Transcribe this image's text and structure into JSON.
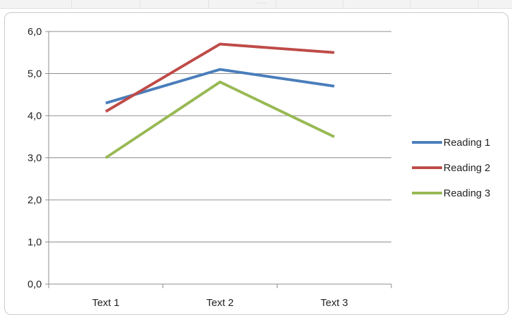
{
  "chart_data": {
    "type": "line",
    "categories": [
      "Text 1",
      "Text 2",
      "Text 3"
    ],
    "series": [
      {
        "name": "Reading 1",
        "values": [
          4.3,
          5.1,
          4.7
        ],
        "color": "#4a7ebb"
      },
      {
        "name": "Reading 2",
        "values": [
          4.1,
          5.7,
          5.5
        ],
        "color": "#be4b48"
      },
      {
        "name": "Reading 3",
        "values": [
          3.0,
          4.8,
          3.5
        ],
        "color": "#98b954"
      }
    ],
    "yticks": [
      "0,0",
      "1,0",
      "2,0",
      "3,0",
      "4,0",
      "5,0",
      "6,0"
    ],
    "ylim": [
      0,
      6
    ],
    "grid": true,
    "legend_position": "right",
    "title": "",
    "xlabel": "",
    "ylabel": ""
  }
}
